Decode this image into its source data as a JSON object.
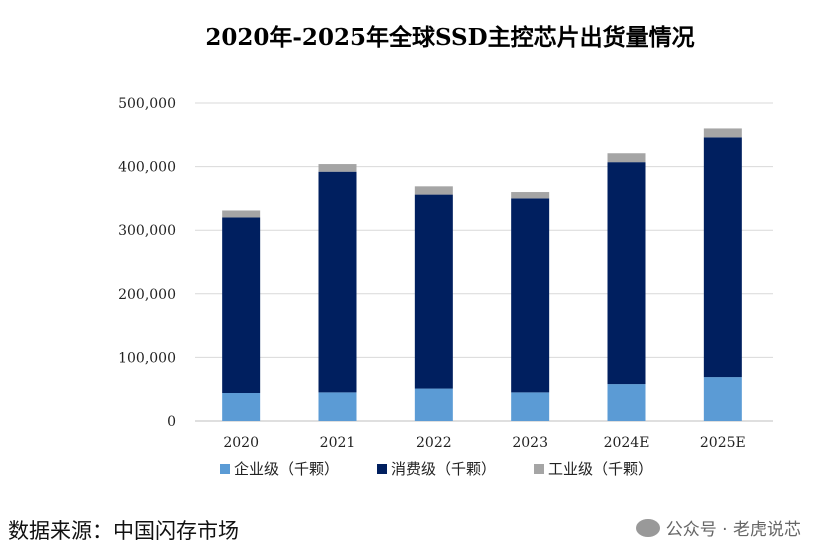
{
  "chart_data": {
    "type": "bar",
    "stacked": true,
    "title": "2020年-2025年全球SSD主控芯片出货量情况",
    "categories": [
      "2020",
      "2021",
      "2022",
      "2023",
      "2024E",
      "2025E"
    ],
    "series": [
      {
        "name": "企业级（千颗）",
        "color": "#5b9bd5",
        "values": [
          44000,
          45000,
          51000,
          45000,
          58000,
          69000
        ]
      },
      {
        "name": "消费级（千颗）",
        "color": "#001f5f",
        "values": [
          276000,
          347000,
          305000,
          305000,
          349000,
          377000
        ]
      },
      {
        "name": "工业级（千颗）",
        "color": "#a5a5a5",
        "values": [
          11000,
          12000,
          13000,
          10000,
          14000,
          14000
        ]
      }
    ],
    "ylim": [
      0,
      500000
    ],
    "yticks": [
      0,
      100000,
      200000,
      300000,
      400000,
      500000
    ],
    "ytick_labels": [
      "0",
      "100,000",
      "200,000",
      "300,000",
      "400,000",
      "500,000"
    ],
    "grid": true,
    "legend_position": "bottom"
  },
  "source": "数据来源：中国闪存市场",
  "watermark": "公众号 · 老虎说芯"
}
